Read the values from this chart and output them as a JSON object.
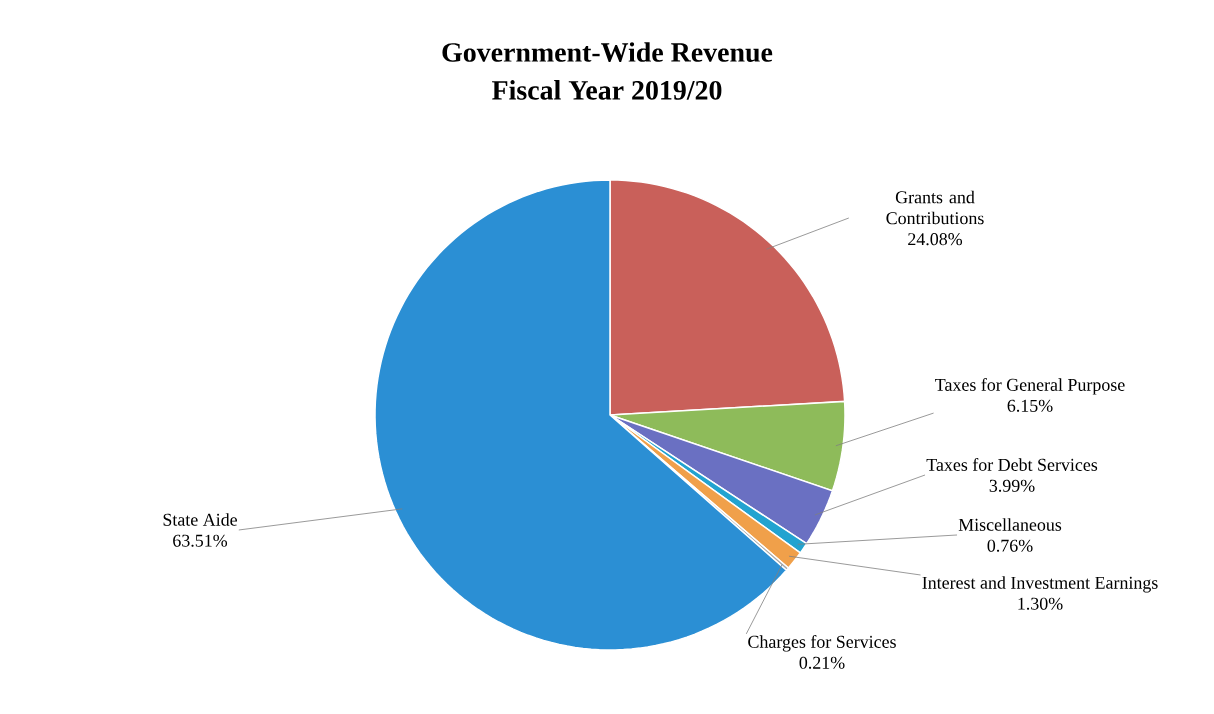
{
  "chart_data": {
    "type": "pie",
    "title": "Government-Wide Revenue",
    "subtitle": "Fiscal Year 2019/20",
    "categories": [
      "Grants and Contributions",
      "Taxes for General Purpose",
      "Taxes for Debt Services",
      "Miscellaneous",
      "Interest and Investment Earnings",
      "Charges for Services",
      "State Aide"
    ],
    "values": [
      24.08,
      6.15,
      3.99,
      0.76,
      1.3,
      0.21,
      63.51
    ],
    "value_labels": [
      "24.08%",
      "6.15%",
      "3.99%",
      "0.76%",
      "1.30%",
      "0.21%",
      "63.51%"
    ],
    "colors": [
      "#c9605a",
      "#8ebb5a",
      "#6a70c2",
      "#22a3d0",
      "#f0a04a",
      "#a8a8a8",
      "#2b8fd4"
    ]
  }
}
